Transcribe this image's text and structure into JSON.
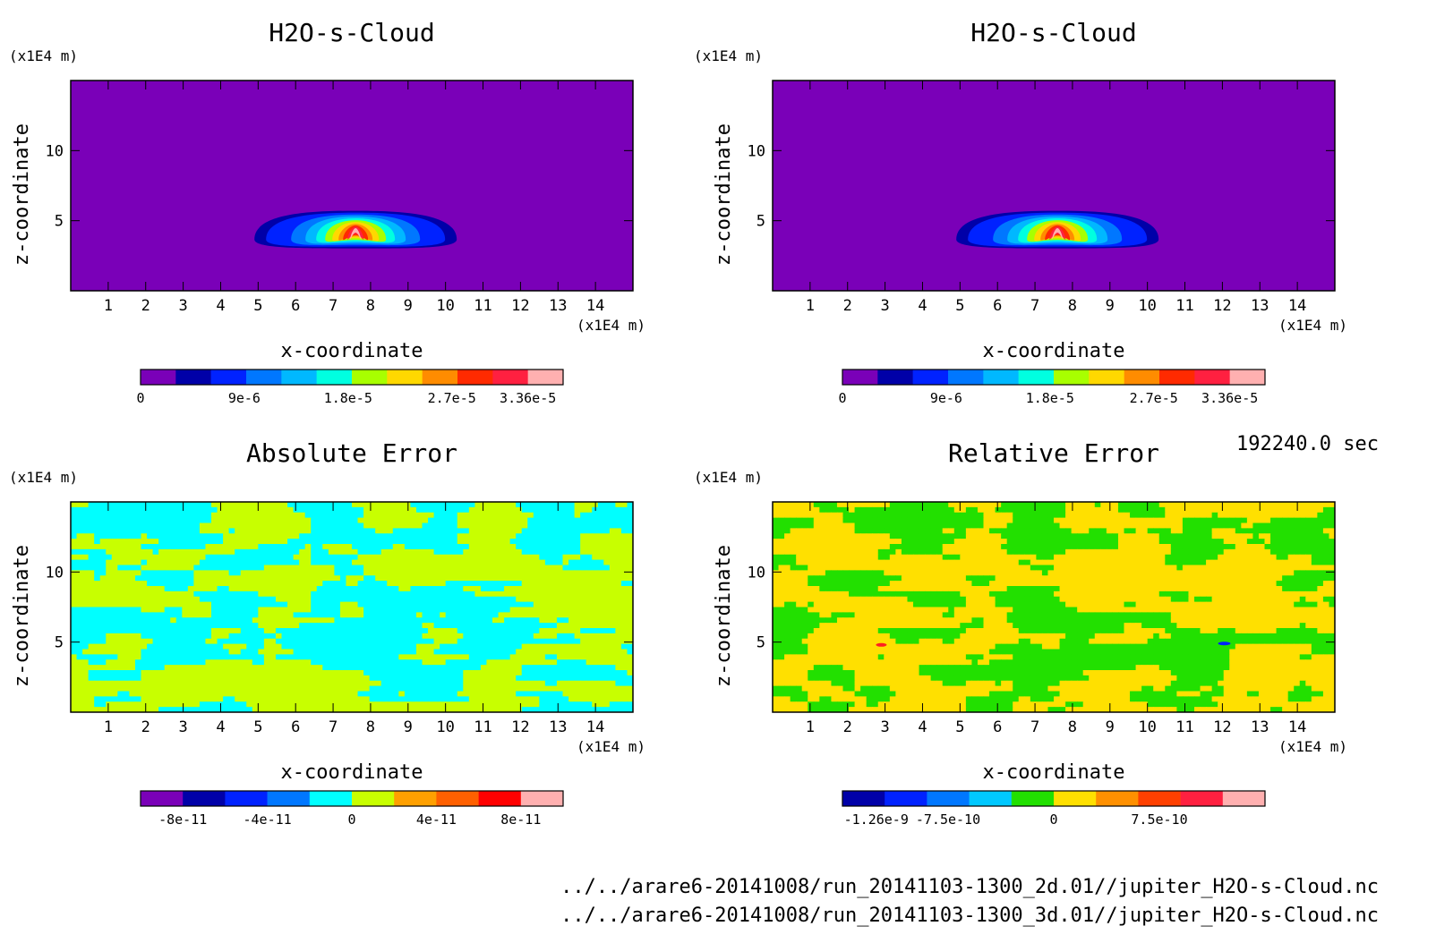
{
  "chart_data": [
    {
      "type": "heatmap",
      "title": "H2O-s-Cloud",
      "xlabel": "x-coordinate",
      "ylabel": "z-coordinate",
      "x_unit": "(x1E4 m)",
      "y_unit": "(x1E4 m)",
      "xlim": [
        0,
        15
      ],
      "ylim": [
        0,
        15
      ],
      "x_ticks": [
        "1",
        "2",
        "3",
        "4",
        "5",
        "6",
        "7",
        "8",
        "9",
        "10",
        "11",
        "12",
        "13",
        "14"
      ],
      "y_ticks": [
        "5",
        "10"
      ],
      "colorbar": {
        "labels": [
          {
            "text": "0",
            "value": 0
          },
          {
            "text": "9e-6",
            "value": 9e-06
          },
          {
            "text": "1.8e-5",
            "value": 1.8e-05
          },
          {
            "text": "2.7e-5",
            "value": 2.7e-05
          },
          {
            "text": "3.36e-5",
            "value": 3.36e-05
          }
        ],
        "colors": [
          "#7a00b8",
          "#0000a8",
          "#0022ff",
          "#0077ff",
          "#00b8ff",
          "#00ffe0",
          "#a8ff00",
          "#ffd800",
          "#ff8c00",
          "#ff2a00",
          "#ff2040",
          "#ffb0b0"
        ]
      },
      "feature": {
        "description_values": {
          "x_center": 7.6,
          "z_center": 4.3,
          "max": 3.36e-05
        }
      }
    },
    {
      "type": "heatmap",
      "title": "H2O-s-Cloud",
      "xlabel": "x-coordinate",
      "ylabel": "z-coordinate",
      "x_unit": "(x1E4 m)",
      "y_unit": "(x1E4 m)",
      "xlim": [
        0,
        15
      ],
      "ylim": [
        0,
        15
      ],
      "x_ticks": [
        "1",
        "2",
        "3",
        "4",
        "5",
        "6",
        "7",
        "8",
        "9",
        "10",
        "11",
        "12",
        "13",
        "14"
      ],
      "y_ticks": [
        "5",
        "10"
      ],
      "colorbar": {
        "labels": [
          {
            "text": "0",
            "value": 0
          },
          {
            "text": "9e-6",
            "value": 9e-06
          },
          {
            "text": "1.8e-5",
            "value": 1.8e-05
          },
          {
            "text": "2.7e-5",
            "value": 2.7e-05
          },
          {
            "text": "3.36e-5",
            "value": 3.36e-05
          }
        ],
        "colors": [
          "#7a00b8",
          "#0000a8",
          "#0022ff",
          "#0077ff",
          "#00b8ff",
          "#00ffe0",
          "#a8ff00",
          "#ffd800",
          "#ff8c00",
          "#ff2a00",
          "#ff2040",
          "#ffb0b0"
        ]
      },
      "feature": {
        "description_values": {
          "x_center": 7.6,
          "z_center": 4.3,
          "max": 3.36e-05
        }
      }
    },
    {
      "type": "heatmap",
      "title": "Absolute Error",
      "xlabel": "x-coordinate",
      "ylabel": "z-coordinate",
      "x_unit": "(x1E4 m)",
      "y_unit": "(x1E4 m)",
      "xlim": [
        0,
        15
      ],
      "ylim": [
        0,
        15
      ],
      "x_ticks": [
        "1",
        "2",
        "3",
        "4",
        "5",
        "6",
        "7",
        "8",
        "9",
        "10",
        "11",
        "12",
        "13",
        "14"
      ],
      "y_ticks": [
        "5",
        "10"
      ],
      "colorbar": {
        "labels": [
          {
            "text": "-8e-11",
            "value": -8e-11
          },
          {
            "text": "-4e-11",
            "value": -4e-11
          },
          {
            "text": "0",
            "value": 0
          },
          {
            "text": "4e-11",
            "value": 4e-11
          },
          {
            "text": "8e-11",
            "value": 8e-11
          }
        ],
        "colors": [
          "#7a00b8",
          "#0000a8",
          "#0022ff",
          "#0077ff",
          "#00ffff",
          "#c8ff00",
          "#ffa000",
          "#ff6000",
          "#ff0000",
          "#ffb0b0"
        ]
      },
      "field_colors": [
        "#00ffff",
        "#c8ff00"
      ]
    },
    {
      "type": "heatmap",
      "title": "Relative Error",
      "xlabel": "x-coordinate",
      "ylabel": "z-coordinate",
      "x_unit": "(x1E4 m)",
      "y_unit": "(x1E4 m)",
      "xlim": [
        0,
        15
      ],
      "ylim": [
        0,
        15
      ],
      "x_ticks": [
        "1",
        "2",
        "3",
        "4",
        "5",
        "6",
        "7",
        "8",
        "9",
        "10",
        "11",
        "12",
        "13",
        "14"
      ],
      "y_ticks": [
        "5",
        "10"
      ],
      "colorbar": {
        "labels": [
          {
            "text": "-1.26e-9",
            "value": -1.26e-09
          },
          {
            "text": "-7.5e-10",
            "value": -7.5e-10
          },
          {
            "text": "0",
            "value": 0
          },
          {
            "text": "7.5e-10",
            "value": 7.5e-10
          }
        ],
        "colors": [
          "#0000a8",
          "#0022ff",
          "#0077ff",
          "#00c8ff",
          "#22e000",
          "#ffe000",
          "#ff9000",
          "#ff4000",
          "#ff2040",
          "#ffb0b0"
        ]
      },
      "field_colors": [
        "#22e000",
        "#ffe000"
      ]
    }
  ],
  "footer": {
    "time": "192240.0 sec",
    "file1": "../../arare6-20141008/run_20141103-1300_2d.01//jupiter_H2O-s-Cloud.nc",
    "file2": "../../arare6-20141008/run_20141103-1300_3d.01//jupiter_H2O-s-Cloud.nc"
  }
}
